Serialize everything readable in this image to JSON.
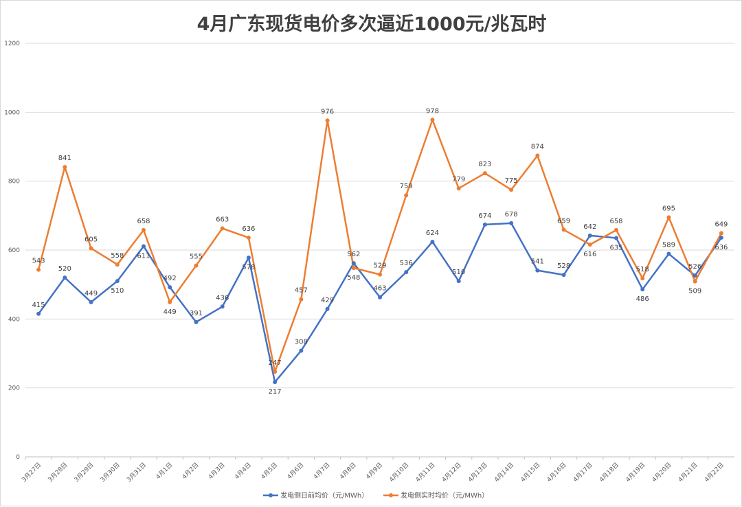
{
  "chart_data": {
    "type": "line",
    "title": "4月广东现货电价多次逼近1000元/兆瓦时",
    "xlabel": "",
    "ylabel": "",
    "ylim": [
      0,
      1200
    ],
    "yticks": [
      0,
      200,
      400,
      600,
      800,
      1000,
      1200
    ],
    "grid": true,
    "legend_placement": "bottom",
    "categories": [
      "3月27日",
      "3月28日",
      "3月29日",
      "3月30日",
      "3月31日",
      "4月1日",
      "4月2日",
      "4月3日",
      "4月4日",
      "4月5日",
      "4月6日",
      "4月7日",
      "4月8日",
      "4月9日",
      "4月10日",
      "4月11日",
      "4月12日",
      "4月13日",
      "4月14日",
      "4月15日",
      "4月16日",
      "4月17日",
      "4月18日",
      "4月19日",
      "4月20日",
      "4月21日",
      "4月22日"
    ],
    "series": [
      {
        "name": "发电侧日前均价（元/MWh）",
        "color": "#4472c4",
        "values": [
          415,
          520,
          449,
          510,
          611,
          492,
          391,
          436,
          578,
          217,
          308,
          429,
          562,
          463,
          536,
          624,
          510,
          674,
          678,
          541,
          528,
          642,
          635,
          486,
          589,
          526,
          636
        ]
      },
      {
        "name": "发电侧实时均价（元/MWh）",
        "color": "#ed7d31",
        "values": [
          543,
          841,
          605,
          558,
          658,
          449,
          555,
          663,
          636,
          247,
          457,
          976,
          548,
          529,
          759,
          978,
          779,
          823,
          775,
          874,
          659,
          616,
          658,
          518,
          695,
          509,
          649
        ]
      }
    ]
  }
}
